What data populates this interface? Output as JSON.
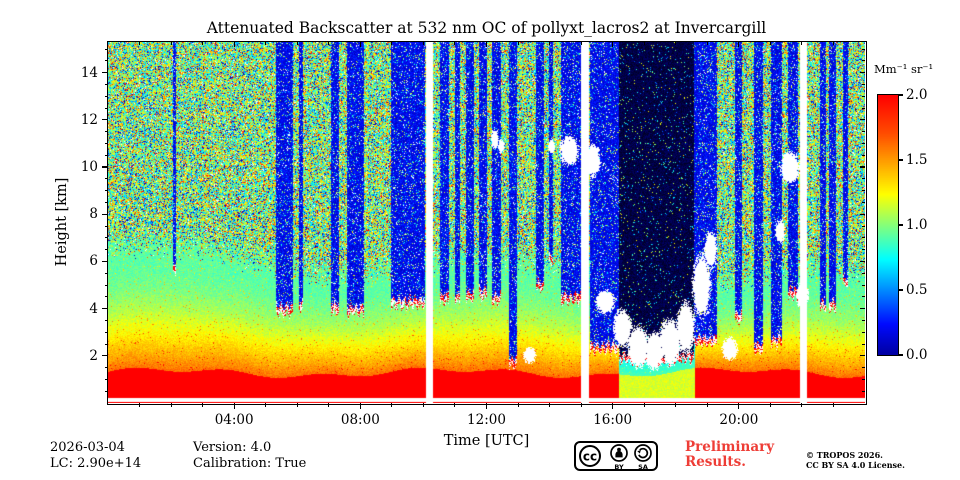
{
  "title": "Attenuated Backscatter at 532 nm OC of pollyxt_lacros2 at Invercargill",
  "axes": {
    "xlabel": "Time [UTC]",
    "ylabel": "Height [km]",
    "x_ticks": [
      {
        "t": 4,
        "label": "04:00"
      },
      {
        "t": 8,
        "label": "08:00"
      },
      {
        "t": 12,
        "label": "12:00"
      },
      {
        "t": 16,
        "label": "16:00"
      },
      {
        "t": 20,
        "label": "20:00"
      }
    ],
    "x_minor_hours": 1,
    "y_ticks": [
      {
        "km": 2,
        "label": "2"
      },
      {
        "km": 4,
        "label": "4"
      },
      {
        "km": 6,
        "label": "6"
      },
      {
        "km": 8,
        "label": "8"
      },
      {
        "km": 10,
        "label": "10"
      },
      {
        "km": 12,
        "label": "12"
      },
      {
        "km": 14,
        "label": "14"
      }
    ],
    "y_minor_km": 0.5
  },
  "colorbar": {
    "label": "Mm⁻¹ sr⁻¹",
    "ticks": [
      {
        "v": 2.0,
        "label": "2.0"
      },
      {
        "v": 1.5,
        "label": "1.5"
      },
      {
        "v": 1.0,
        "label": "1.0"
      },
      {
        "v": 0.5,
        "label": "0.5"
      },
      {
        "v": 0.0,
        "label": "0.0"
      }
    ]
  },
  "footer": {
    "date": "2026-03-04",
    "lidar_constant": "LC: 2.90e+14",
    "version": "Version: 4.0",
    "calibration": "Calibration: True",
    "preliminary_line1": "Preliminary",
    "preliminary_line2": "Results.",
    "preliminary_color": "#ee3d36",
    "copyright_line1": "© TROPOS 2026.",
    "copyright_line2": "CC BY SA 4.0 License.",
    "cc_badge": {
      "cc": "cc",
      "by": "BY",
      "sa": "SA"
    }
  },
  "chart_data": {
    "type": "heatmap",
    "title": "Attenuated Backscatter at 532 nm OC of pollyxt_lacros2 at Invercargill",
    "xlabel": "Time [UTC]",
    "ylabel": "Height [km]",
    "value_label": "Mm⁻¹ sr⁻¹",
    "x_range_hours": [
      0,
      24
    ],
    "y_range_km": [
      0,
      15.3
    ],
    "value_range": [
      0.0,
      2.0
    ],
    "x_tick_hours": [
      4,
      8,
      12,
      16,
      20
    ],
    "y_tick_km": [
      2,
      4,
      6,
      8,
      10,
      12,
      14
    ],
    "colorbar_ticks": [
      0.0,
      0.5,
      1.0,
      1.5,
      2.0
    ],
    "colormap": "jet-like",
    "colormap_stops": [
      [
        0.0,
        [
          0,
          0,
          160
        ]
      ],
      [
        0.12,
        [
          0,
          10,
          255
        ]
      ],
      [
        0.37,
        [
          0,
          255,
          255
        ]
      ],
      [
        0.62,
        [
          255,
          255,
          0
        ]
      ],
      [
        0.85,
        [
          255,
          80,
          0
        ]
      ],
      [
        1.0,
        [
          255,
          0,
          0
        ]
      ]
    ],
    "features": {
      "near_ground": {
        "blind_zone_top_km": 0.22,
        "ground_line_top_km": 0.07,
        "ground_line_value": 2.2
      },
      "surface_aerosol_layer": {
        "top_km": 1.3,
        "top_variation_km": 0.25,
        "value": 2.0
      },
      "aerosol_gradient": {
        "top_km": 5.7,
        "top_slope_km_per_hour": -0.05,
        "top_wave_km": 0.5,
        "v_top": 0.92,
        "v_bottom": 1.62,
        "falloff_exp": 1.8,
        "blend_km": 1.4
      },
      "noise_region": {
        "white_frac": 0.04,
        "dark_frac": 0.08,
        "hot_frac": 0.09,
        "v_min": 0.5,
        "v_max": 1.45
      },
      "reduced_surface_intervals": [
        {
          "t0": 16.2,
          "t1": 18.6,
          "factor": 0.55
        }
      ],
      "data_gaps": [
        {
          "t0": 10.06,
          "t1": 10.3
        },
        {
          "t0": 14.97,
          "t1": 15.22
        },
        {
          "t0": 21.92,
          "t1": 22.16
        }
      ],
      "attenuated_columns": [
        {
          "t0": 2.05,
          "t1": 2.15,
          "base_km": 5.5
        },
        {
          "t0": 5.3,
          "t1": 5.85,
          "base_km": 3.8
        },
        {
          "t0": 6.05,
          "t1": 6.18,
          "base_km": 4.0
        },
        {
          "t0": 7.05,
          "t1": 7.3,
          "base_km": 3.9
        },
        {
          "t0": 7.55,
          "t1": 8.1,
          "base_km": 3.8
        },
        {
          "t0": 8.95,
          "t1": 10.05,
          "base_km": 4.1
        },
        {
          "t0": 10.5,
          "t1": 10.8,
          "base_km": 4.3
        },
        {
          "t0": 11.0,
          "t1": 11.15,
          "base_km": 4.3
        },
        {
          "t0": 11.35,
          "t1": 11.6,
          "base_km": 4.4
        },
        {
          "t0": 11.75,
          "t1": 12.0,
          "base_km": 4.5
        },
        {
          "t0": 12.15,
          "t1": 12.45,
          "base_km": 4.3
        },
        {
          "t0": 12.7,
          "t1": 12.95,
          "base_km": 1.6
        },
        {
          "t0": 13.55,
          "t1": 13.8,
          "base_km": 4.8
        },
        {
          "t0": 13.95,
          "t1": 14.1,
          "base_km": 6.0
        },
        {
          "t0": 14.35,
          "t1": 15.0,
          "base_km": 4.3
        },
        {
          "t0": 15.25,
          "t1": 16.2,
          "base_km": 2.2
        },
        {
          "t0": 16.2,
          "t1": 18.55,
          "base_km": 1.8,
          "dark": true
        },
        {
          "t0": 18.55,
          "t1": 19.3,
          "base_km": 2.5
        },
        {
          "t0": 19.85,
          "t1": 20.1,
          "base_km": 3.5
        },
        {
          "t0": 20.45,
          "t1": 20.75,
          "base_km": 2.2
        },
        {
          "t0": 21.0,
          "t1": 21.35,
          "base_km": 2.5
        },
        {
          "t0": 21.55,
          "t1": 21.85,
          "base_km": 4.5
        },
        {
          "t0": 22.55,
          "t1": 22.75,
          "base_km": 4.0
        },
        {
          "t0": 22.85,
          "t1": 23.05,
          "base_km": 4.0
        },
        {
          "t0": 23.3,
          "t1": 23.45,
          "base_km": 5.0
        }
      ],
      "clouds": [
        {
          "t": 12.25,
          "h": 11.2,
          "rt": 0.12,
          "rh": 0.4
        },
        {
          "t": 12.45,
          "h": 10.9,
          "rt": 0.1,
          "rh": 0.3
        },
        {
          "t": 13.35,
          "h": 2.05,
          "rt": 0.2,
          "rh": 0.35
        },
        {
          "t": 14.05,
          "h": 10.9,
          "rt": 0.1,
          "rh": 0.3
        },
        {
          "t": 14.6,
          "h": 10.7,
          "rt": 0.3,
          "rh": 0.6
        },
        {
          "t": 15.35,
          "h": 10.3,
          "rt": 0.25,
          "rh": 0.7
        },
        {
          "t": 15.75,
          "h": 4.3,
          "rt": 0.3,
          "rh": 0.5
        },
        {
          "t": 16.3,
          "h": 3.2,
          "rt": 0.3,
          "rh": 0.8
        },
        {
          "t": 16.8,
          "h": 2.4,
          "rt": 0.35,
          "rh": 0.9
        },
        {
          "t": 17.3,
          "h": 2.2,
          "rt": 0.3,
          "rh": 0.8
        },
        {
          "t": 17.8,
          "h": 2.6,
          "rt": 0.35,
          "rh": 1.0
        },
        {
          "t": 18.3,
          "h": 3.2,
          "rt": 0.3,
          "rh": 1.1
        },
        {
          "t": 18.8,
          "h": 5.0,
          "rt": 0.3,
          "rh": 1.3
        },
        {
          "t": 19.1,
          "h": 6.5,
          "rt": 0.2,
          "rh": 0.8
        },
        {
          "t": 19.7,
          "h": 2.3,
          "rt": 0.25,
          "rh": 0.5
        },
        {
          "t": 21.3,
          "h": 7.3,
          "rt": 0.15,
          "rh": 0.5
        },
        {
          "t": 21.6,
          "h": 10.0,
          "rt": 0.3,
          "rh": 0.7
        },
        {
          "t": 22.0,
          "h": 4.6,
          "rt": 0.2,
          "rh": 0.6
        }
      ]
    }
  }
}
